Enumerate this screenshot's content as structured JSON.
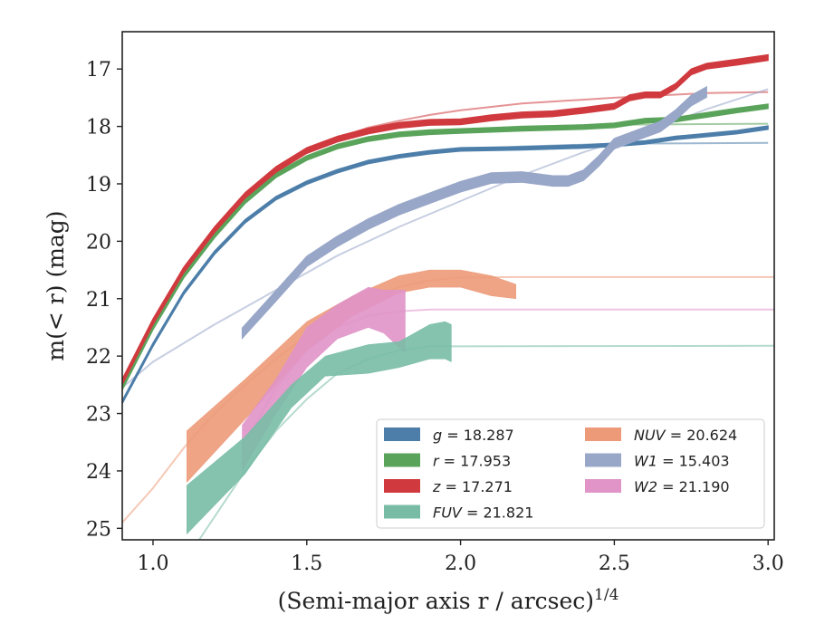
{
  "chart_data": {
    "type": "line",
    "xlabel": "(Semi-major axis r / arcsec)",
    "xlabel_super": "1/4",
    "ylabel": "m(< r) (mag)",
    "xlim": [
      0.9,
      3.02
    ],
    "ylim": [
      25.2,
      16.35
    ],
    "y_inverted": true,
    "grid": false,
    "legend_position": "lower-right",
    "x_ticks": [
      1.0,
      1.5,
      2.0,
      2.5,
      3.0
    ],
    "x_tick_labels": [
      "1.0",
      "1.5",
      "2.0",
      "2.5",
      "3.0"
    ],
    "y_ticks": [
      17,
      18,
      19,
      20,
      21,
      22,
      23,
      24,
      25
    ],
    "y_tick_labels": [
      "17",
      "18",
      "19",
      "20",
      "21",
      "22",
      "23",
      "24",
      "25"
    ],
    "legend": [
      {
        "label": "g = 18.287",
        "color": "#4c7ea9"
      },
      {
        "label": "r = 17.953",
        "color": "#5aa35a"
      },
      {
        "label": "z = 17.271",
        "color": "#d03a3e"
      },
      {
        "label": "FUV = 21.821",
        "color": "#78bca6"
      },
      {
        "label": "NUV = 20.624",
        "color": "#ec9a78"
      },
      {
        "label": "W1 = 15.403",
        "color": "#98a6c8"
      },
      {
        "label": "W2 = 21.190",
        "color": "#e094c8"
      }
    ],
    "series": [
      {
        "name": "g",
        "color": "#4c7ea9",
        "x": [
          0.9,
          1.0,
          1.1,
          1.2,
          1.3,
          1.4,
          1.5,
          1.6,
          1.7,
          1.8,
          1.9,
          2.0,
          2.2,
          2.4,
          2.5,
          2.6,
          2.7,
          2.8,
          2.9,
          3.0
        ],
        "y": [
          22.8,
          21.8,
          20.9,
          20.2,
          19.65,
          19.25,
          18.98,
          18.78,
          18.62,
          18.52,
          18.45,
          18.4,
          18.38,
          18.35,
          18.32,
          18.28,
          18.2,
          18.15,
          18.1,
          18.02
        ],
        "width": 0.06,
        "model": {
          "x": [
            0.9,
            1.0,
            1.1,
            1.2,
            1.3,
            1.4,
            1.5,
            1.6,
            1.7,
            1.8,
            1.9,
            2.0,
            2.2,
            2.5,
            3.0
          ],
          "y": [
            22.8,
            21.8,
            20.9,
            20.2,
            19.65,
            19.25,
            18.98,
            18.78,
            18.62,
            18.52,
            18.45,
            18.4,
            18.35,
            18.3,
            18.287
          ]
        }
      },
      {
        "name": "r",
        "color": "#5aa35a",
        "x": [
          0.9,
          1.0,
          1.1,
          1.2,
          1.3,
          1.4,
          1.5,
          1.6,
          1.7,
          1.8,
          1.9,
          2.0,
          2.2,
          2.4,
          2.5,
          2.6,
          2.7,
          2.8,
          2.9,
          3.0
        ],
        "y": [
          22.55,
          21.5,
          20.6,
          19.9,
          19.3,
          18.85,
          18.55,
          18.35,
          18.22,
          18.14,
          18.1,
          18.08,
          18.04,
          18.01,
          17.98,
          17.9,
          17.88,
          17.8,
          17.72,
          17.65
        ],
        "width": 0.08,
        "model": {
          "x": [
            0.9,
            1.0,
            1.1,
            1.2,
            1.3,
            1.4,
            1.5,
            1.6,
            1.7,
            1.8,
            1.9,
            2.0,
            2.2,
            2.5,
            3.0
          ],
          "y": [
            22.55,
            21.5,
            20.6,
            19.9,
            19.3,
            18.85,
            18.55,
            18.35,
            18.22,
            18.14,
            18.1,
            18.06,
            18.0,
            17.97,
            17.953
          ]
        }
      },
      {
        "name": "z",
        "color": "#d03a3e",
        "x": [
          0.9,
          1.0,
          1.1,
          1.2,
          1.3,
          1.4,
          1.5,
          1.6,
          1.7,
          1.8,
          1.9,
          2.0,
          2.1,
          2.2,
          2.3,
          2.4,
          2.5,
          2.55,
          2.6,
          2.65,
          2.7,
          2.75,
          2.8,
          2.9,
          3.0
        ],
        "y": [
          22.45,
          21.4,
          20.5,
          19.8,
          19.2,
          18.75,
          18.42,
          18.22,
          18.08,
          17.98,
          17.93,
          17.92,
          17.85,
          17.8,
          17.78,
          17.72,
          17.65,
          17.5,
          17.45,
          17.45,
          17.3,
          17.05,
          16.95,
          16.88,
          16.8
        ],
        "width": 0.1,
        "model": {
          "x": [
            0.9,
            1.0,
            1.1,
            1.2,
            1.3,
            1.4,
            1.5,
            1.6,
            1.7,
            1.8,
            1.9,
            2.0,
            2.2,
            2.5,
            2.8,
            3.0
          ],
          "y": [
            22.45,
            21.4,
            20.5,
            19.8,
            19.2,
            18.75,
            18.42,
            18.2,
            18.02,
            17.9,
            17.8,
            17.72,
            17.6,
            17.5,
            17.42,
            17.4
          ]
        }
      },
      {
        "name": "W1",
        "color": "#98a6c8",
        "x": [
          1.29,
          1.4,
          1.5,
          1.6,
          1.7,
          1.8,
          1.9,
          2.0,
          2.1,
          2.2,
          2.3,
          2.35,
          2.4,
          2.45,
          2.5,
          2.55,
          2.6,
          2.65,
          2.7,
          2.75,
          2.8
        ],
        "y": [
          21.6,
          20.95,
          20.35,
          20.0,
          19.7,
          19.45,
          19.25,
          19.05,
          18.9,
          18.88,
          18.95,
          18.95,
          18.85,
          18.6,
          18.3,
          18.2,
          18.1,
          18.0,
          17.8,
          17.55,
          17.4
        ],
        "width": 0.18,
        "model": {
          "x": [
            0.9,
            1.0,
            1.2,
            1.4,
            1.6,
            1.8,
            2.0,
            2.2,
            2.4,
            2.6,
            2.8,
            3.0
          ],
          "y": [
            22.55,
            22.1,
            21.45,
            20.85,
            20.25,
            19.75,
            19.3,
            18.85,
            18.45,
            18.1,
            17.7,
            17.35
          ]
        }
      },
      {
        "name": "NUV",
        "color": "#ec9a78",
        "band": true,
        "x": [
          1.11,
          1.3,
          1.5,
          1.65,
          1.8,
          1.9,
          2.0,
          2.1,
          2.18
        ],
        "y_low": [
          24.2,
          23.1,
          21.9,
          21.3,
          20.9,
          20.8,
          20.8,
          20.95,
          21.0
        ],
        "y_high": [
          23.3,
          22.4,
          21.4,
          20.95,
          20.6,
          20.5,
          20.5,
          20.6,
          20.75
        ],
        "model": {
          "x": [
            0.9,
            1.0,
            1.1,
            1.2,
            1.3,
            1.4,
            1.5,
            1.6,
            1.7,
            1.8,
            1.9,
            2.0,
            2.2,
            3.02
          ],
          "y": [
            24.9,
            24.3,
            23.6,
            23.0,
            22.5,
            22.05,
            21.65,
            21.3,
            21.0,
            20.8,
            20.68,
            20.63,
            20.624,
            20.624
          ]
        }
      },
      {
        "name": "W2",
        "color": "#e094c8",
        "band": true,
        "x": [
          1.29,
          1.4,
          1.5,
          1.6,
          1.7,
          1.75,
          1.82
        ],
        "y_low": [
          24.0,
          23.0,
          22.2,
          21.7,
          21.5,
          21.6,
          21.95
        ],
        "y_high": [
          23.2,
          22.4,
          21.5,
          21.1,
          20.8,
          20.85,
          20.85
        ],
        "model": {
          "x": [
            1.3,
            1.4,
            1.5,
            1.6,
            1.7,
            1.8,
            1.9,
            3.02
          ],
          "y": [
            23.5,
            22.55,
            21.9,
            21.5,
            21.3,
            21.22,
            21.19,
            21.19
          ]
        }
      },
      {
        "name": "FUV",
        "color": "#78bca6",
        "band": true,
        "x": [
          1.11,
          1.3,
          1.45,
          1.56,
          1.7,
          1.8,
          1.9,
          1.95,
          1.97
        ],
        "y_low": [
          25.1,
          24.05,
          22.9,
          22.35,
          22.3,
          22.2,
          22.05,
          22.05,
          22.1
        ],
        "y_high": [
          24.25,
          23.4,
          22.5,
          22.0,
          21.8,
          21.75,
          21.45,
          21.4,
          21.45
        ],
        "model": {
          "x": [
            1.15,
            1.3,
            1.4,
            1.5,
            1.6,
            1.7,
            1.8,
            1.9,
            3.02
          ],
          "y": [
            25.2,
            24.0,
            23.3,
            22.75,
            22.3,
            22.05,
            21.9,
            21.83,
            21.821
          ]
        }
      }
    ]
  }
}
